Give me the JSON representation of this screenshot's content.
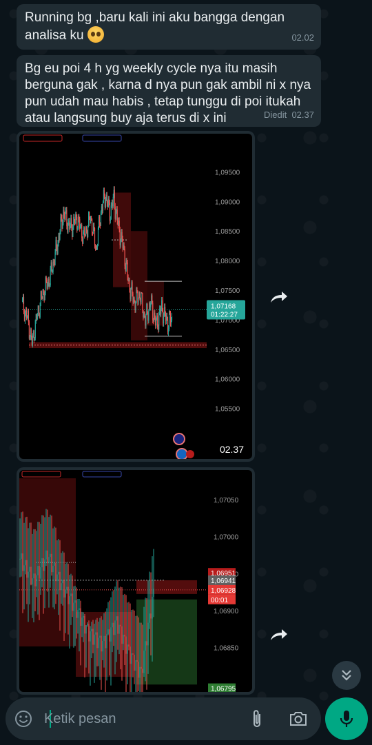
{
  "messages": [
    {
      "text_line1": "Running bg ,baru kali ini aku bangga dengan",
      "text_line2": "analisa ku",
      "time": "02.02"
    },
    {
      "text_line1": "Bg eu poi 4 h yg weekly cycle nya itu masih",
      "text_line2": "berguna gak , karna d nya pun gak ambil ni x nya",
      "text_line3": "pun udah mau habis , tetap tunggu di poi itukah",
      "text_line4": "atau langsung buy aja terus di x ini",
      "edited": "Diedit",
      "time": "02.37"
    }
  ],
  "image1": {
    "time": "02.37",
    "price_axis": [
      "1,09500",
      "1,09000",
      "1,08500",
      "1,08000",
      "1,07500",
      "1,07000",
      "1,06500",
      "1,06000",
      "1,05500"
    ],
    "current_price": "1,07168",
    "countdown": "01:22:27",
    "ymin": 1.0525,
    "ymax": 1.0975
  },
  "image2": {
    "price_axis": [
      "1,07050",
      "1,07000",
      "1,06950",
      "1,06900",
      "1,06850"
    ],
    "labels": [
      {
        "value": "1,06951",
        "price": 1.06951,
        "color": "#b71c1c"
      },
      {
        "value": "1,06941",
        "price": 1.06941,
        "color": "#616161"
      },
      {
        "value": "1,06928",
        "price": 1.06928,
        "color": "#e53935"
      },
      {
        "value": "00:01",
        "price": 1.06915,
        "color": "#e53935"
      },
      {
        "value": "1,06795",
        "price": 1.06795,
        "color": "#2e7d32"
      }
    ],
    "ymin": 1.0679,
    "ymax": 1.0709
  },
  "composer": {
    "placeholder": "Ketik pesan"
  },
  "icons": {
    "emoji": "emoji-icon",
    "attach": "paperclip-icon",
    "camera": "camera-icon",
    "mic": "mic-icon",
    "forward": "forward-icon",
    "scroll": "double-chevron-down-icon"
  },
  "colors": {
    "bubble": "#202c33",
    "accent": "#00a884",
    "bull": "#26a69a",
    "bear": "#ef5350"
  }
}
